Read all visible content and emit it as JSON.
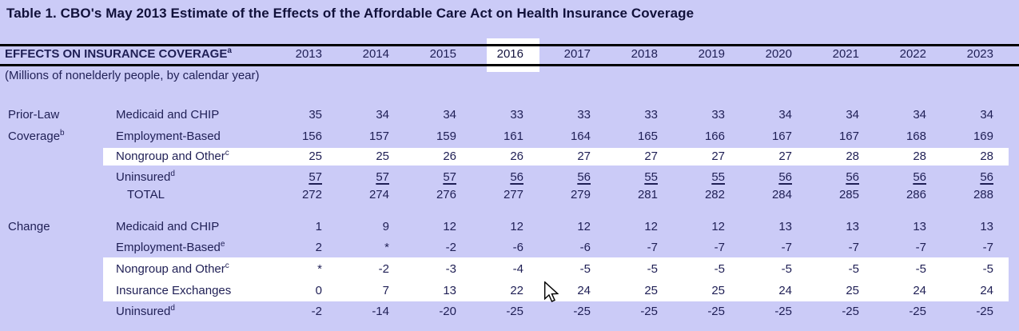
{
  "title": "Table 1. CBO's May 2013 Estimate of the Effects of the Affordable Care Act on Health Insurance Coverage",
  "subtitle": "(Millions of nonelderly people, by calendar year)",
  "header": {
    "label": "EFFECTS ON INSURANCE COVERAGE",
    "label_sup": "a",
    "years": [
      "2013",
      "2014",
      "2015",
      "2016",
      "2017",
      "2018",
      "2019",
      "2020",
      "2021",
      "2022",
      "2023"
    ],
    "highlighted_year": "2016"
  },
  "sections": [
    {
      "name_lines": [
        {
          "text": "Prior-Law",
          "sup": ""
        },
        {
          "text": "Coverage",
          "sup": "b"
        }
      ],
      "rows": [
        {
          "label": "Medicaid and CHIP",
          "sup": "",
          "highlight": false,
          "underline": false,
          "indent": false,
          "values": [
            "35",
            "34",
            "34",
            "33",
            "33",
            "33",
            "33",
            "34",
            "34",
            "34",
            "34"
          ]
        },
        {
          "label": "Employment-Based",
          "sup": "",
          "highlight": false,
          "underline": false,
          "indent": false,
          "values": [
            "156",
            "157",
            "159",
            "161",
            "164",
            "165",
            "166",
            "167",
            "167",
            "168",
            "169"
          ]
        },
        {
          "label": "Nongroup and Other",
          "sup": "c",
          "highlight": true,
          "underline": false,
          "indent": false,
          "values": [
            "25",
            "25",
            "26",
            "26",
            "27",
            "27",
            "27",
            "27",
            "28",
            "28",
            "28"
          ]
        },
        {
          "label": "Uninsured",
          "sup": "d",
          "highlight": false,
          "underline": true,
          "indent": false,
          "values": [
            "57",
            "57",
            "57",
            "56",
            "56",
            "55",
            "55",
            "56",
            "56",
            "56",
            "56"
          ]
        },
        {
          "label": "TOTAL",
          "sup": "",
          "highlight": false,
          "underline": false,
          "indent": true,
          "values": [
            "272",
            "274",
            "276",
            "277",
            "279",
            "281",
            "282",
            "284",
            "285",
            "286",
            "288"
          ]
        }
      ]
    },
    {
      "name_lines": [
        {
          "text": "Change",
          "sup": ""
        }
      ],
      "rows": [
        {
          "label": "Medicaid and CHIP",
          "sup": "",
          "highlight": false,
          "underline": false,
          "indent": false,
          "values": [
            "1",
            "9",
            "12",
            "12",
            "12",
            "12",
            "12",
            "13",
            "13",
            "13",
            "13"
          ]
        },
        {
          "label": "Employment-Based",
          "sup": "e",
          "highlight": false,
          "underline": false,
          "indent": false,
          "values": [
            "2",
            "*",
            "-2",
            "-6",
            "-6",
            "-7",
            "-7",
            "-7",
            "-7",
            "-7",
            "-7"
          ]
        },
        {
          "label": "Nongroup and Other",
          "sup": "c",
          "highlight": true,
          "underline": false,
          "indent": false,
          "values": [
            "*",
            "-2",
            "-3",
            "-4",
            "-5",
            "-5",
            "-5",
            "-5",
            "-5",
            "-5",
            "-5"
          ]
        },
        {
          "label": "Insurance Exchanges",
          "sup": "",
          "highlight": true,
          "underline": false,
          "indent": false,
          "values": [
            "0",
            "7",
            "13",
            "22",
            "24",
            "25",
            "25",
            "24",
            "25",
            "24",
            "24"
          ]
        },
        {
          "label": "Uninsured",
          "sup": "d",
          "highlight": false,
          "underline": false,
          "indent": false,
          "values": [
            "-2",
            "-14",
            "-20",
            "-25",
            "-25",
            "-25",
            "-25",
            "-25",
            "-25",
            "-25",
            "-25"
          ]
        }
      ]
    }
  ],
  "icons": {
    "cursor": "arrow-pointer"
  },
  "colors": {
    "background": "#cbcbf7",
    "highlight": "#ffffff",
    "text": "#1f1f55",
    "title_text": "#11113a",
    "rule": "#000000"
  }
}
